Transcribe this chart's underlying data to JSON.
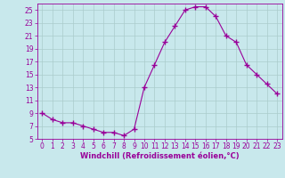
{
  "x": [
    0,
    1,
    2,
    3,
    4,
    5,
    6,
    7,
    8,
    9,
    10,
    11,
    12,
    13,
    14,
    15,
    16,
    17,
    18,
    19,
    20,
    21,
    22,
    23
  ],
  "y": [
    9,
    8,
    7.5,
    7.5,
    7,
    6.5,
    6,
    6,
    5.5,
    6.5,
    13,
    16.5,
    20,
    22.5,
    25,
    25.5,
    25.5,
    24,
    21,
    20,
    16.5,
    15,
    13.5,
    12
  ],
  "line_color": "#990099",
  "marker": "+",
  "marker_size": 4.0,
  "bg_color": "#c8e8ec",
  "grid_color": "#aacccc",
  "xlabel": "Windchill (Refroidissement éolien,°C)",
  "xlabel_color": "#990099",
  "xlabel_fontsize": 6,
  "tick_color": "#990099",
  "tick_fontsize": 5.5,
  "ylim": [
    5,
    26
  ],
  "yticks": [
    5,
    7,
    9,
    11,
    13,
    15,
    17,
    19,
    21,
    23,
    25
  ],
  "xlim": [
    -0.5,
    23.5
  ]
}
